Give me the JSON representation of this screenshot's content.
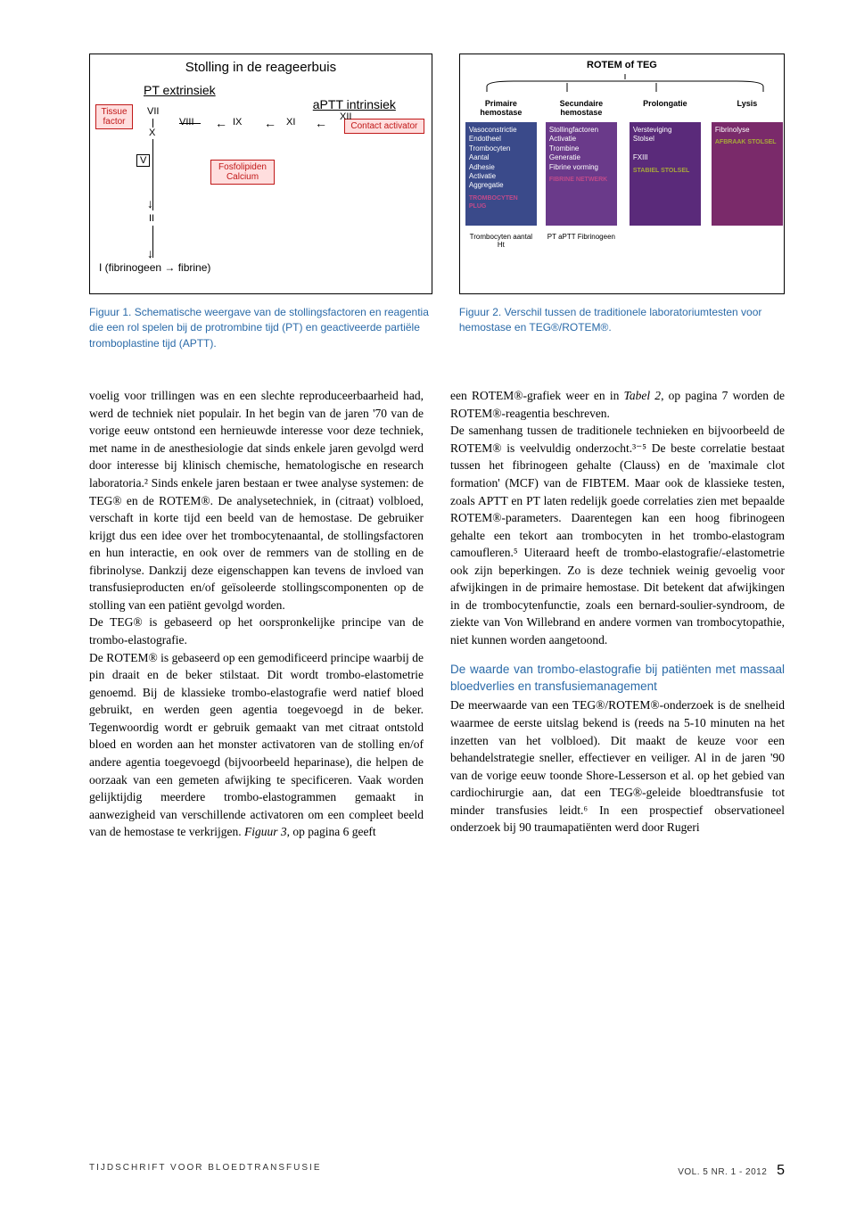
{
  "figure1": {
    "border_color": "#000000",
    "box_bg": "#ffdede",
    "box_border": "#c01818",
    "box_text_color": "#c01818",
    "title": "Stolling in de reageerbuis",
    "pt_label": "PT extrinsiek",
    "aptt_label": "aPTT intrinsiek",
    "tissue_factor": "Tissue factor",
    "contact_activator": "Contact activator",
    "fosfolipiden": "Fosfolipiden Calcium",
    "labels": {
      "VII": "VII",
      "VIII": "VIII",
      "IX": "IX",
      "XI": "XI",
      "XII": "XII",
      "X": "X",
      "V": "V",
      "II": "II",
      "fibrine": "I (fibrinogeen → fibrine)"
    }
  },
  "figure2": {
    "top": "ROTEM of TEG",
    "colors": {
      "col1": "#3a4a8a",
      "col2": "#6a3a8a",
      "col3": "#5a2a7a",
      "col4": "#7a2a6a",
      "accent1": "#c04a8a",
      "accent2": "#a8a83a"
    },
    "headers": [
      "Primaire hemostase",
      "Secundaire hemostase",
      "Prolongatie",
      "Lysis"
    ],
    "col1_lines": [
      "Vasoconstrictie",
      "Endotheel",
      "Trombocyten",
      "Aantal",
      "Adhesie",
      "Activatie",
      "Aggregatie"
    ],
    "col1_badge": "TROMBOCYTEN PLUG",
    "col2_lines": [
      "Stollingfactoren",
      "Activatie",
      "Trombine",
      "Generatie",
      "Fibrine vorming"
    ],
    "col2_badge": "FIBRINE NETWERK",
    "col3_lines": [
      "Versteviging",
      "Stolsel",
      "",
      "FXIII"
    ],
    "col3_badge": "STABIEL STOLSEL",
    "col4_lines": [
      "Fibrinolyse"
    ],
    "col4_badge": "AFBRAAK STOLSEL",
    "bottom": [
      "Trombocyten aantal Ht",
      "PT aPTT Fibrinogeen",
      "",
      ""
    ]
  },
  "captions": {
    "fig1": "Figuur 1. Schematische weergave van de stollingsfactoren en reagentia die een rol spelen bij de protrombine tijd (PT) en geactiveerde partiële tromboplastine tijd (APTT).",
    "fig2": "Figuur 2. Verschil tussen de traditionele laboratoriumtesten voor hemostase en TEG®/ROTEM®."
  },
  "body": {
    "left": "voelig voor trillingen was en een slechte reproduceerbaarheid had, werd de techniek niet populair. In het begin van de jaren '70 van de vorige eeuw ontstond een hernieuwde interesse voor deze techniek, met name in de anesthesiologie dat sinds enkele jaren gevolgd werd door interesse bij klinisch chemische, hematologische en research laboratoria.² Sinds enkele jaren bestaan er twee analyse systemen: de TEG® en de ROTEM®. De analysetechniek, in (citraat) volbloed, verschaft in korte tijd een beeld van de hemostase. De gebruiker krijgt dus een idee over het trombocytenaantal, de stollingsfactoren en hun interactie, en ook over de remmers van de stolling en de fibrinolyse. Dankzij deze eigenschappen kan tevens de invloed van transfusieproducten en/of geïsoleerde stollingscomponenten op de stolling van een patiënt gevolgd worden.\nDe TEG® is gebaseerd op het oorspronkelijke principe van de trombo-elastografie.\nDe ROTEM® is gebaseerd op een gemodificeerd principe waarbij de pin draait en de beker stilstaat. Dit wordt trombo-elastometrie genoemd. Bij de klassieke trombo-elastografie werd natief bloed gebruikt, en werden geen agentia toegevoegd in de beker. Tegenwoordig wordt er gebruik gemaakt van met citraat ontstold bloed en worden aan het monster activatoren van de stolling en/of andere agentia toegevoegd (bijvoorbeeld heparinase), die helpen de oorzaak van een gemeten afwijking te specificeren. Vaak worden gelijktijdig meerdere trombo-elastogrammen gemaakt in aanwezigheid van verschillende activatoren om een compleet beeld van de hemostase te verkrijgen. Figuur 3, op pagina 6 geeft",
    "right_p1": "een ROTEM®-grafiek weer en in Tabel 2, op pagina 7 worden de ROTEM®-reagentia beschreven.\nDe samenhang tussen de traditionele technieken en bijvoorbeeld de ROTEM® is veelvuldig onderzocht.³⁻⁵ De beste correlatie bestaat tussen het fibrinogeen gehalte (Clauss) en de 'maximale clot formation' (MCF) van de FIBTEM. Maar ook de klassieke testen, zoals APTT en PT laten redelijk goede correlaties zien met bepaalde ROTEM®-parameters. Daarentegen kan een hoog fibrinogeen gehalte een tekort aan trombocyten in het trombo-elastogram camoufleren.⁵ Uiteraard heeft de trombo-elastografie/-elastometrie ook zijn beperkingen. Zo is deze techniek weinig gevoelig voor afwijkingen in de primaire hemostase. Dit betekent dat afwijkingen in de trombocytenfunctie, zoals een bernard-soulier-syndroom, de ziekte van Von Willebrand en andere vormen van trombocytopathie, niet kunnen worden aangetoond.",
    "subhead": "De waarde van trombo-elastografie bij patiënten met massaal bloedverlies en transfusiemanagement",
    "right_p2": "De meerwaarde van een TEG®/ROTEM®-onderzoek is de snelheid waarmee de eerste uitslag bekend is (reeds na 5-10 minuten na het inzetten van het volbloed). Dit maakt de keuze voor een behandelstrategie sneller, effectiever en veiliger. Al in de jaren '90 van de vorige eeuw toonde Shore-Lesserson et al. op het gebied van cardiochirurgie aan, dat een TEG®-geleide bloedtransfusie tot minder transfusies leidt.⁶ In een prospectief observationeel onderzoek bij 90 traumapatiënten werd door Rugeri"
  },
  "footer": {
    "journal": "TIJDSCHRIFT VOOR BLOEDTRANSFUSIE",
    "vol": "VOL. 5 NR. 1 - 2012",
    "page": "5"
  },
  "colors": {
    "caption_blue": "#2a6aa8"
  }
}
